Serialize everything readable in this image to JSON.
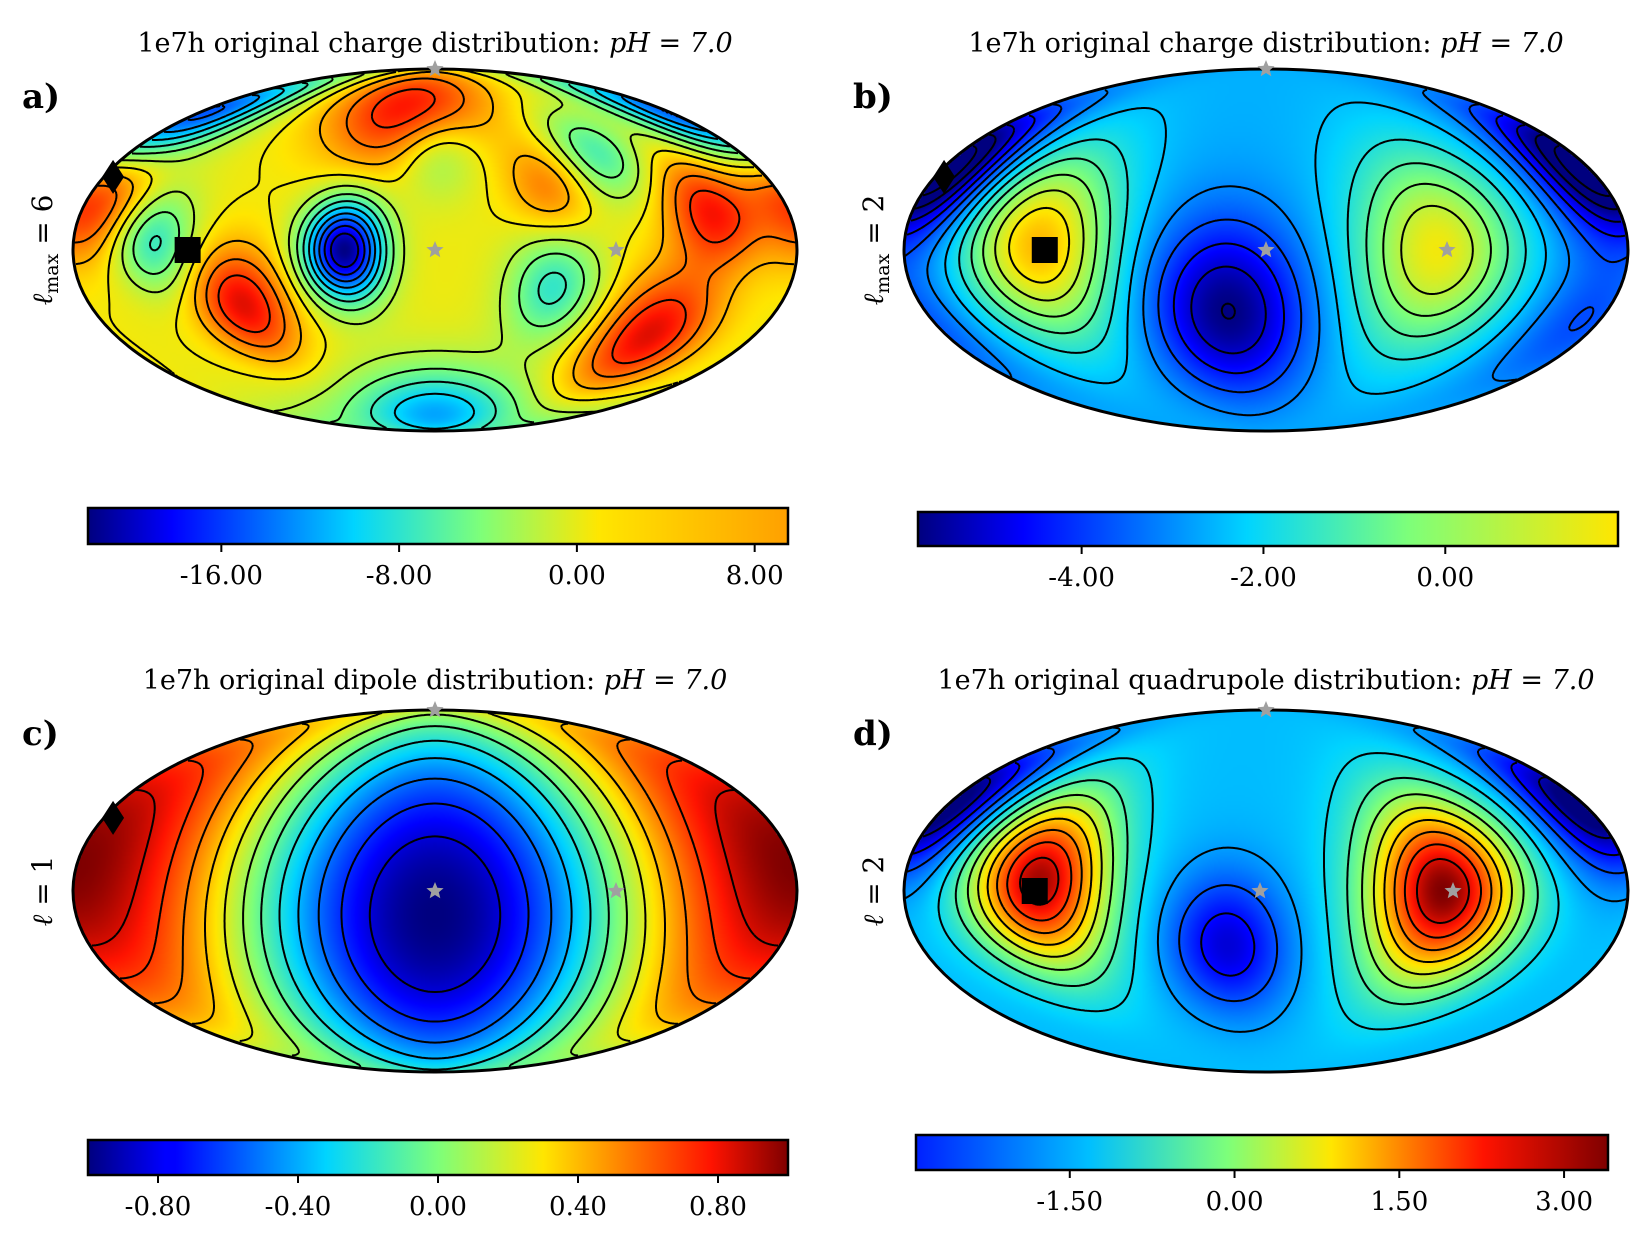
{
  "chart_data": [
    {
      "type": "heatmap",
      "projection": "mollweide",
      "panel": "a)",
      "title": "1e7h original charge distribution: ",
      "title_math": "pH = 7.0",
      "ylabel": "ℓ_max = 6",
      "ylabel_main": "ℓ",
      "ylabel_sub": "max",
      "ylabel_rest": " = 6",
      "colormap": "jet",
      "colorbar_range": [
        -22,
        9.5
      ],
      "colorbar_ticks": [
        -16,
        -8,
        0,
        8
      ],
      "colorbar_tick_labels": [
        "-16.00",
        "-8.00",
        "0.00",
        "8.00"
      ],
      "colorbar_cmap_max": 0.9,
      "field": {
        "base": 0.1,
        "blobs": [
          {
            "lon": -45,
            "lat": 0,
            "value": -22,
            "width": 14
          },
          {
            "lon": -100,
            "lat": -22,
            "value": 10,
            "width": 16
          },
          {
            "lon": -20,
            "lat": 60,
            "value": 10,
            "width": 20
          },
          {
            "lon": 120,
            "lat": -35,
            "value": 10,
            "width": 18
          },
          {
            "lon": 140,
            "lat": 15,
            "value": 9,
            "width": 16
          },
          {
            "lon": -175,
            "lat": 18,
            "value": 8,
            "width": 16
          },
          {
            "lon": -140,
            "lat": 3,
            "value": -8,
            "width": 14
          },
          {
            "lon": 60,
            "lat": -15,
            "value": -8,
            "width": 16
          },
          {
            "lon": 95,
            "lat": 40,
            "value": -7,
            "width": 14
          },
          {
            "lon": 0,
            "lat": 40,
            "value": -6,
            "width": 14
          },
          {
            "lon": 60,
            "lat": 25,
            "value": 5,
            "width": 14
          },
          {
            "lon": -170,
            "lat": 62,
            "value": -9,
            "width": 16
          },
          {
            "lon": 180,
            "lat": 55,
            "value": -7,
            "width": 16
          },
          {
            "lon": 0,
            "lat": -75,
            "value": -12,
            "width": 18
          }
        ]
      },
      "markers": [
        {
          "type": "diamond",
          "lon": -175,
          "lat": 30
        },
        {
          "type": "square",
          "lon": -123,
          "lat": 0
        },
        {
          "type": "star",
          "lon": 0,
          "lat": 90
        },
        {
          "type": "star",
          "lon": 0,
          "lat": 0
        },
        {
          "type": "star",
          "lon": 90,
          "lat": 0
        }
      ]
    },
    {
      "type": "heatmap",
      "projection": "mollweide",
      "panel": "b)",
      "title": "1e7h original charge distribution: ",
      "title_math": "pH = 7.0",
      "ylabel": "ℓ_max = 2",
      "ylabel_main": "ℓ",
      "ylabel_sub": "max",
      "ylabel_rest": " = 2",
      "colormap": "jet",
      "colorbar_range": [
        -5.8,
        1.9
      ],
      "colorbar_ticks": [
        -4,
        -2,
        0
      ],
      "colorbar_tick_labels": [
        "-4.00",
        "-2.00",
        "0.00"
      ],
      "colorbar_cmap_max": 0.72,
      "field": {
        "base": -2.6,
        "blobs": [
          {
            "lon": -113,
            "lat": 2,
            "value": 4.3,
            "width": 26
          },
          {
            "lon": 85,
            "lat": 0,
            "value": 3.6,
            "width": 28
          },
          {
            "lon": -20,
            "lat": -25,
            "value": -3.2,
            "width": 26
          },
          {
            "lon": -175,
            "lat": 35,
            "value": -2.4,
            "width": 18
          },
          {
            "lon": 175,
            "lat": 30,
            "value": -2.4,
            "width": 20
          },
          {
            "lon": 170,
            "lat": -30,
            "value": -1.2,
            "width": 20
          }
        ]
      },
      "markers": [
        {
          "type": "diamond",
          "lon": -175,
          "lat": 30
        },
        {
          "type": "square",
          "lon": -110,
          "lat": 0
        },
        {
          "type": "star",
          "lon": 0,
          "lat": 90
        },
        {
          "type": "star",
          "lon": 0,
          "lat": 0
        },
        {
          "type": "star",
          "lon": 90,
          "lat": 0
        }
      ]
    },
    {
      "type": "heatmap",
      "projection": "mollweide",
      "panel": "c)",
      "title": "1e7h original dipole distribution: ",
      "title_math": "pH = 7.0",
      "ylabel": "ℓ = 1",
      "ylabel_main": "ℓ",
      "ylabel_sub": "",
      "ylabel_rest": " = 1",
      "colormap": "jet",
      "colorbar_range": [
        -1.0,
        1.0
      ],
      "colorbar_ticks": [
        -0.8,
        -0.4,
        0,
        0.4,
        0.8
      ],
      "colorbar_tick_labels": [
        "-0.80",
        "-0.40",
        "0.00",
        "0.40",
        "0.80"
      ],
      "colorbar_cmap_max": 1.0,
      "dipole": {
        "lon": 0,
        "lat": -10
      },
      "markers": [
        {
          "type": "diamond",
          "lon": -175,
          "lat": 30
        },
        {
          "type": "star",
          "lon": 0,
          "lat": 90
        },
        {
          "type": "star",
          "lon": 0,
          "lat": 0
        },
        {
          "type": "star",
          "lon": 90,
          "lat": 0
        }
      ]
    },
    {
      "type": "heatmap",
      "projection": "mollweide",
      "panel": "d)",
      "title": "1e7h original quadrupole distribution: ",
      "title_math": "pH = 7.0",
      "ylabel": "ℓ = 2",
      "ylabel_main": "ℓ",
      "ylabel_sub": "",
      "ylabel_rest": " = 2",
      "colormap": "jet",
      "colorbar_range": [
        -2.9,
        3.4
      ],
      "colorbar_ticks": [
        -1.5,
        0,
        1.5,
        3
      ],
      "colorbar_tick_labels": [
        "-1.50",
        "0.00",
        "1.50",
        "3.00"
      ],
      "colorbar_cmap_max": 1.0,
      "field": {
        "base": -1.2,
        "blobs": [
          {
            "lon": -113,
            "lat": 4,
            "value": 4.4,
            "width": 24
          },
          {
            "lon": 88,
            "lat": 0,
            "value": 4.6,
            "width": 26
          },
          {
            "lon": -20,
            "lat": -22,
            "value": -1.6,
            "width": 20
          },
          {
            "lon": 175,
            "lat": 30,
            "value": -1.4,
            "width": 18
          },
          {
            "lon": -175,
            "lat": 40,
            "value": -1.2,
            "width": 18
          }
        ]
      },
      "markers": [
        {
          "type": "square",
          "lon": -115,
          "lat": 0
        },
        {
          "type": "star",
          "lon": 0,
          "lat": 90
        },
        {
          "type": "star",
          "lon": -3,
          "lat": 0
        },
        {
          "type": "star",
          "lon": 93,
          "lat": 0
        }
      ]
    }
  ]
}
